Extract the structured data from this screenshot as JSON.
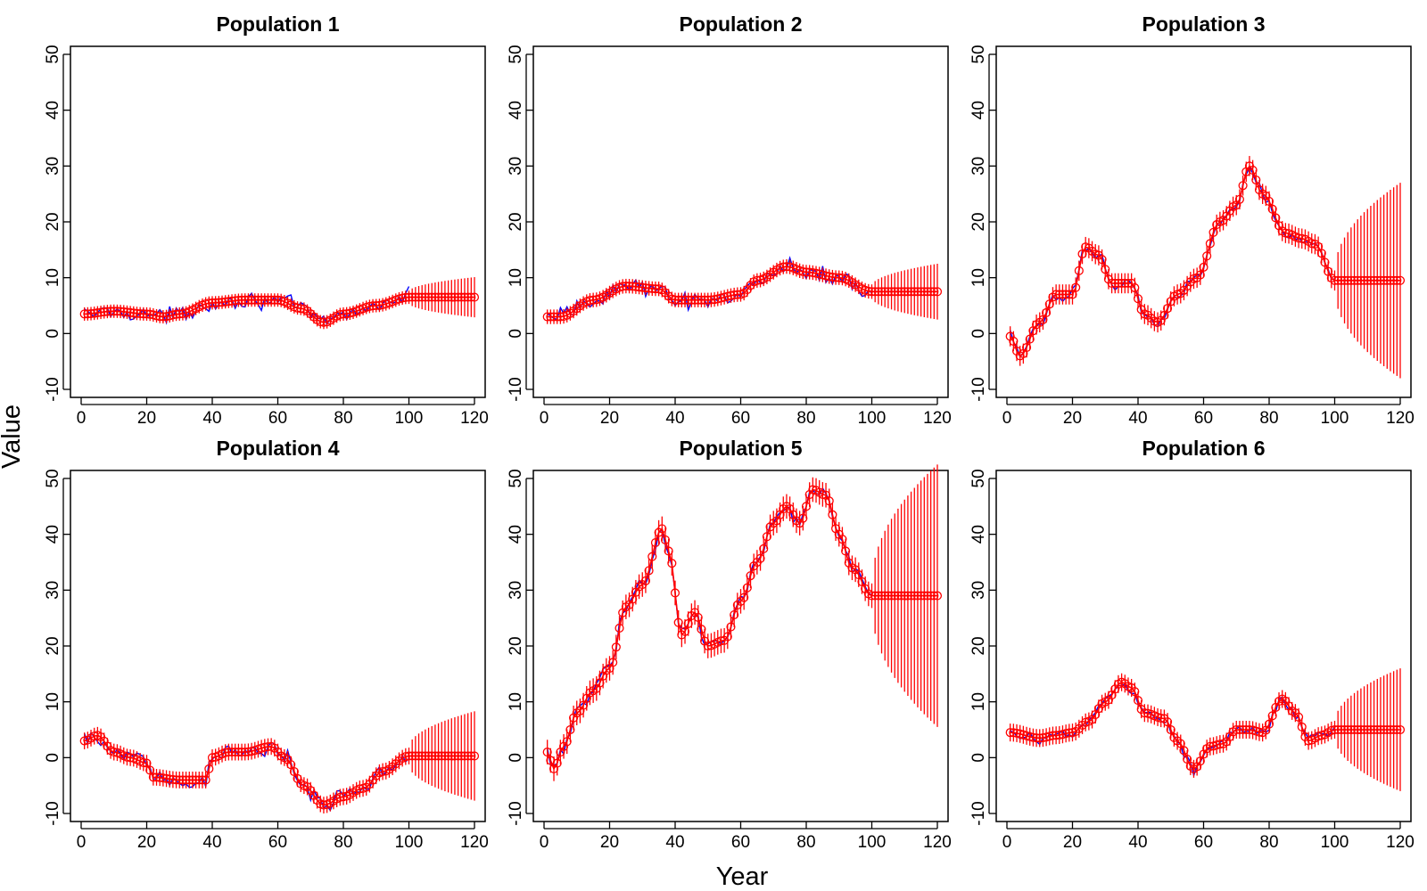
{
  "figure": {
    "xlabel": "Year",
    "ylabel": "Value",
    "colors": {
      "observed": "#0000ff",
      "fitted": "#ff0000",
      "axes": "#000000"
    }
  },
  "chart_data": [
    {
      "type": "line",
      "title": "Population 1",
      "xlim": [
        0,
        120
      ],
      "ylim": [
        -10,
        50
      ],
      "xticks": [
        0,
        20,
        40,
        60,
        80,
        100,
        120
      ],
      "yticks": [
        -10,
        0,
        10,
        20,
        30,
        40,
        50
      ],
      "observed_until": 100,
      "forecast_from": 100,
      "forecast_to": 120,
      "forecast_value": 6.5,
      "forecast_band_start": 1.0,
      "forecast_band_end": 3.6,
      "fit_band": 1.2,
      "obs_noise": 1.4,
      "trend_x": [
        1,
        10,
        20,
        25,
        30,
        40,
        50,
        60,
        67,
        74,
        80,
        90,
        100
      ],
      "trend_y": [
        3.5,
        4.0,
        3.5,
        3.0,
        3.5,
        5.5,
        6.0,
        6.0,
        4.5,
        2.0,
        3.5,
        5.0,
        6.5
      ]
    },
    {
      "type": "line",
      "title": "Population 2",
      "xlim": [
        0,
        120
      ],
      "ylim": [
        -10,
        50
      ],
      "xticks": [
        0,
        20,
        40,
        60,
        80,
        100,
        120
      ],
      "yticks": [
        -10,
        0,
        10,
        20,
        30,
        40,
        50
      ],
      "observed_until": 100,
      "forecast_from": 100,
      "forecast_to": 120,
      "forecast_value": 7.5,
      "forecast_band_start": 1.0,
      "forecast_band_end": 5.0,
      "fit_band": 1.3,
      "obs_noise": 1.5,
      "trend_x": [
        1,
        5,
        15,
        25,
        35,
        40,
        50,
        60,
        65,
        74,
        80,
        90,
        100
      ],
      "trend_y": [
        3.0,
        3.0,
        6.0,
        8.5,
        8.0,
        6.0,
        6.0,
        7.0,
        9.5,
        12.0,
        11.0,
        10.0,
        7.5
      ]
    },
    {
      "type": "line",
      "title": "Population 3",
      "xlim": [
        0,
        120
      ],
      "ylim": [
        -10,
        50
      ],
      "xticks": [
        0,
        20,
        40,
        60,
        80,
        100,
        120
      ],
      "yticks": [
        -10,
        0,
        10,
        20,
        30,
        40,
        50
      ],
      "observed_until": 100,
      "forecast_from": 100,
      "forecast_to": 120,
      "forecast_value": 9.5,
      "forecast_band_start": 1.5,
      "forecast_band_end": 17.5,
      "fit_band": 1.8,
      "obs_noise": 1.0,
      "trend_x": [
        1,
        4,
        10,
        15,
        20,
        24,
        28,
        32,
        38,
        42,
        46,
        52,
        58,
        65,
        70,
        74,
        78,
        85,
        90,
        94,
        100
      ],
      "trend_y": [
        -0.5,
        -4.0,
        2.0,
        7.0,
        7.0,
        15.5,
        14.0,
        9.0,
        9.0,
        3.5,
        2.0,
        7.0,
        10.0,
        20.0,
        23.0,
        30.0,
        25.0,
        18.0,
        17.0,
        16.0,
        9.5
      ]
    },
    {
      "type": "line",
      "title": "Population 4",
      "xlim": [
        0,
        120
      ],
      "ylim": [
        -10,
        50
      ],
      "xticks": [
        0,
        20,
        40,
        60,
        80,
        100,
        120
      ],
      "yticks": [
        -10,
        0,
        10,
        20,
        30,
        40,
        50
      ],
      "observed_until": 100,
      "forecast_from": 100,
      "forecast_to": 120,
      "forecast_value": 0.3,
      "forecast_band_start": 1.5,
      "forecast_band_end": 8.0,
      "fit_band": 1.5,
      "obs_noise": 1.6,
      "trend_x": [
        1,
        5,
        10,
        15,
        20,
        22,
        30,
        38,
        40,
        45,
        50,
        58,
        62,
        68,
        74,
        80,
        86,
        92,
        100
      ],
      "trend_y": [
        3.0,
        4.0,
        1.0,
        0.0,
        -1.0,
        -3.5,
        -4.0,
        -4.0,
        0.0,
        1.0,
        1.0,
        2.0,
        0.0,
        -5.0,
        -8.5,
        -7.0,
        -5.5,
        -2.5,
        0.3
      ]
    },
    {
      "type": "line",
      "title": "Population 5",
      "xlim": [
        0,
        120
      ],
      "ylim": [
        -10,
        50
      ],
      "xticks": [
        0,
        20,
        40,
        60,
        80,
        100,
        120
      ],
      "yticks": [
        -10,
        0,
        10,
        20,
        30,
        40,
        50
      ],
      "observed_until": 100,
      "forecast_from": 100,
      "forecast_to": 120,
      "forecast_value": 29.0,
      "forecast_band_start": 2.0,
      "forecast_band_end": 23.5,
      "fit_band": 2.2,
      "obs_noise": 1.2,
      "trend_x": [
        1,
        3,
        6,
        10,
        15,
        20,
        25,
        30,
        36,
        38,
        42,
        46,
        50,
        55,
        60,
        65,
        70,
        74,
        78,
        82,
        86,
        90,
        94,
        100
      ],
      "trend_y": [
        1.0,
        -2.0,
        2.0,
        8.0,
        12.0,
        16.0,
        27.0,
        31.0,
        41.0,
        37.0,
        22.0,
        26.0,
        20.0,
        21.0,
        28.0,
        35.0,
        42.0,
        45.0,
        42.0,
        48.0,
        47.0,
        40.0,
        34.0,
        29.0
      ]
    },
    {
      "type": "line",
      "title": "Population 6",
      "xlim": [
        0,
        120
      ],
      "ylim": [
        -10,
        50
      ],
      "xticks": [
        0,
        20,
        40,
        60,
        80,
        100,
        120
      ],
      "yticks": [
        -10,
        0,
        10,
        20,
        30,
        40,
        50
      ],
      "observed_until": 100,
      "forecast_from": 100,
      "forecast_to": 120,
      "forecast_value": 5.0,
      "forecast_band_start": 1.2,
      "forecast_band_end": 11.0,
      "fit_band": 1.6,
      "obs_noise": 0.9,
      "trend_x": [
        1,
        10,
        15,
        20,
        25,
        30,
        35,
        38,
        42,
        48,
        52,
        57,
        62,
        66,
        70,
        74,
        78,
        84,
        88,
        92,
        96,
        100
      ],
      "trend_y": [
        4.5,
        3.5,
        4.0,
        4.5,
        6.5,
        10.0,
        13.5,
        12.5,
        8.0,
        7.0,
        3.0,
        -2.0,
        2.0,
        2.5,
        5.0,
        5.0,
        4.5,
        10.5,
        8.0,
        3.0,
        4.0,
        5.0
      ]
    }
  ]
}
